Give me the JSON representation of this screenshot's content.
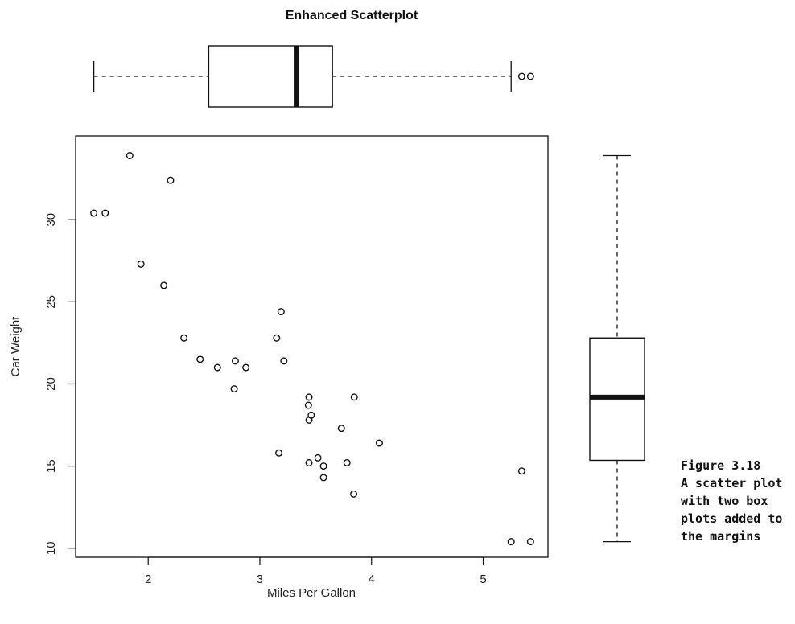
{
  "chart_data": {
    "type": "scatter",
    "title": "Enhanced Scatterplot",
    "xlabel": "Miles Per Gallon",
    "ylabel": "Car Weight",
    "xlim": [
      1.35,
      5.58
    ],
    "ylim": [
      9.45,
      35.1
    ],
    "x_ticks": [
      2,
      3,
      4,
      5
    ],
    "y_ticks": [
      10,
      15,
      20,
      25,
      30
    ],
    "x": [
      1.513,
      1.615,
      1.835,
      1.935,
      2.14,
      2.2,
      2.32,
      2.465,
      2.62,
      2.77,
      2.78,
      2.875,
      3.15,
      3.17,
      3.19,
      3.215,
      3.435,
      3.44,
      3.44,
      3.44,
      3.46,
      3.52,
      3.57,
      3.57,
      3.73,
      3.78,
      3.84,
      3.845,
      4.07,
      5.25,
      5.345,
      5.424
    ],
    "y": [
      30.4,
      30.4,
      33.9,
      27.3,
      26.0,
      32.4,
      22.8,
      21.5,
      21.0,
      19.7,
      21.4,
      21.0,
      22.8,
      15.8,
      24.4,
      21.4,
      18.7,
      17.8,
      15.2,
      19.2,
      18.1,
      15.5,
      15.0,
      14.3,
      17.3,
      15.2,
      13.3,
      19.2,
      16.4,
      10.4,
      14.7,
      10.4
    ],
    "top_boxplot": {
      "min": 1.513,
      "q1": 2.542,
      "median": 3.325,
      "q3": 3.65,
      "max": 5.25,
      "outliers": [
        5.345,
        5.424
      ]
    },
    "right_boxplot": {
      "min": 10.4,
      "q1": 15.35,
      "median": 19.2,
      "q3": 22.8,
      "max": 33.9
    },
    "grid": false
  },
  "caption": {
    "lines": [
      "Figure 3.18",
      "A scatter plot",
      "with two box",
      "plots added to",
      "the margins"
    ]
  }
}
